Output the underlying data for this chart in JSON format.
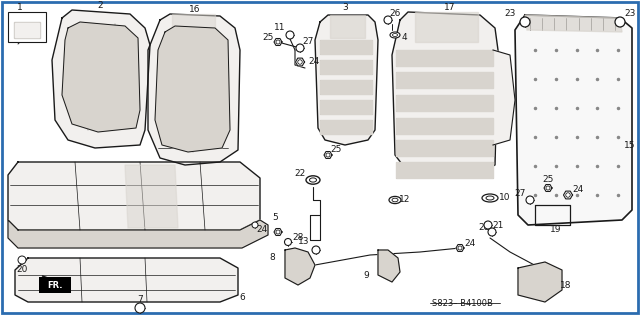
{
  "bg_color": "#ffffff",
  "border_color": "#2b6cb0",
  "diagram_code": "S823– B4100B",
  "figsize": [
    6.4,
    3.15
  ],
  "dpi": 100,
  "line_color": "#1a1a1a",
  "fill_color": "#f2f0ee",
  "fill_dark": "#d8d4ce"
}
